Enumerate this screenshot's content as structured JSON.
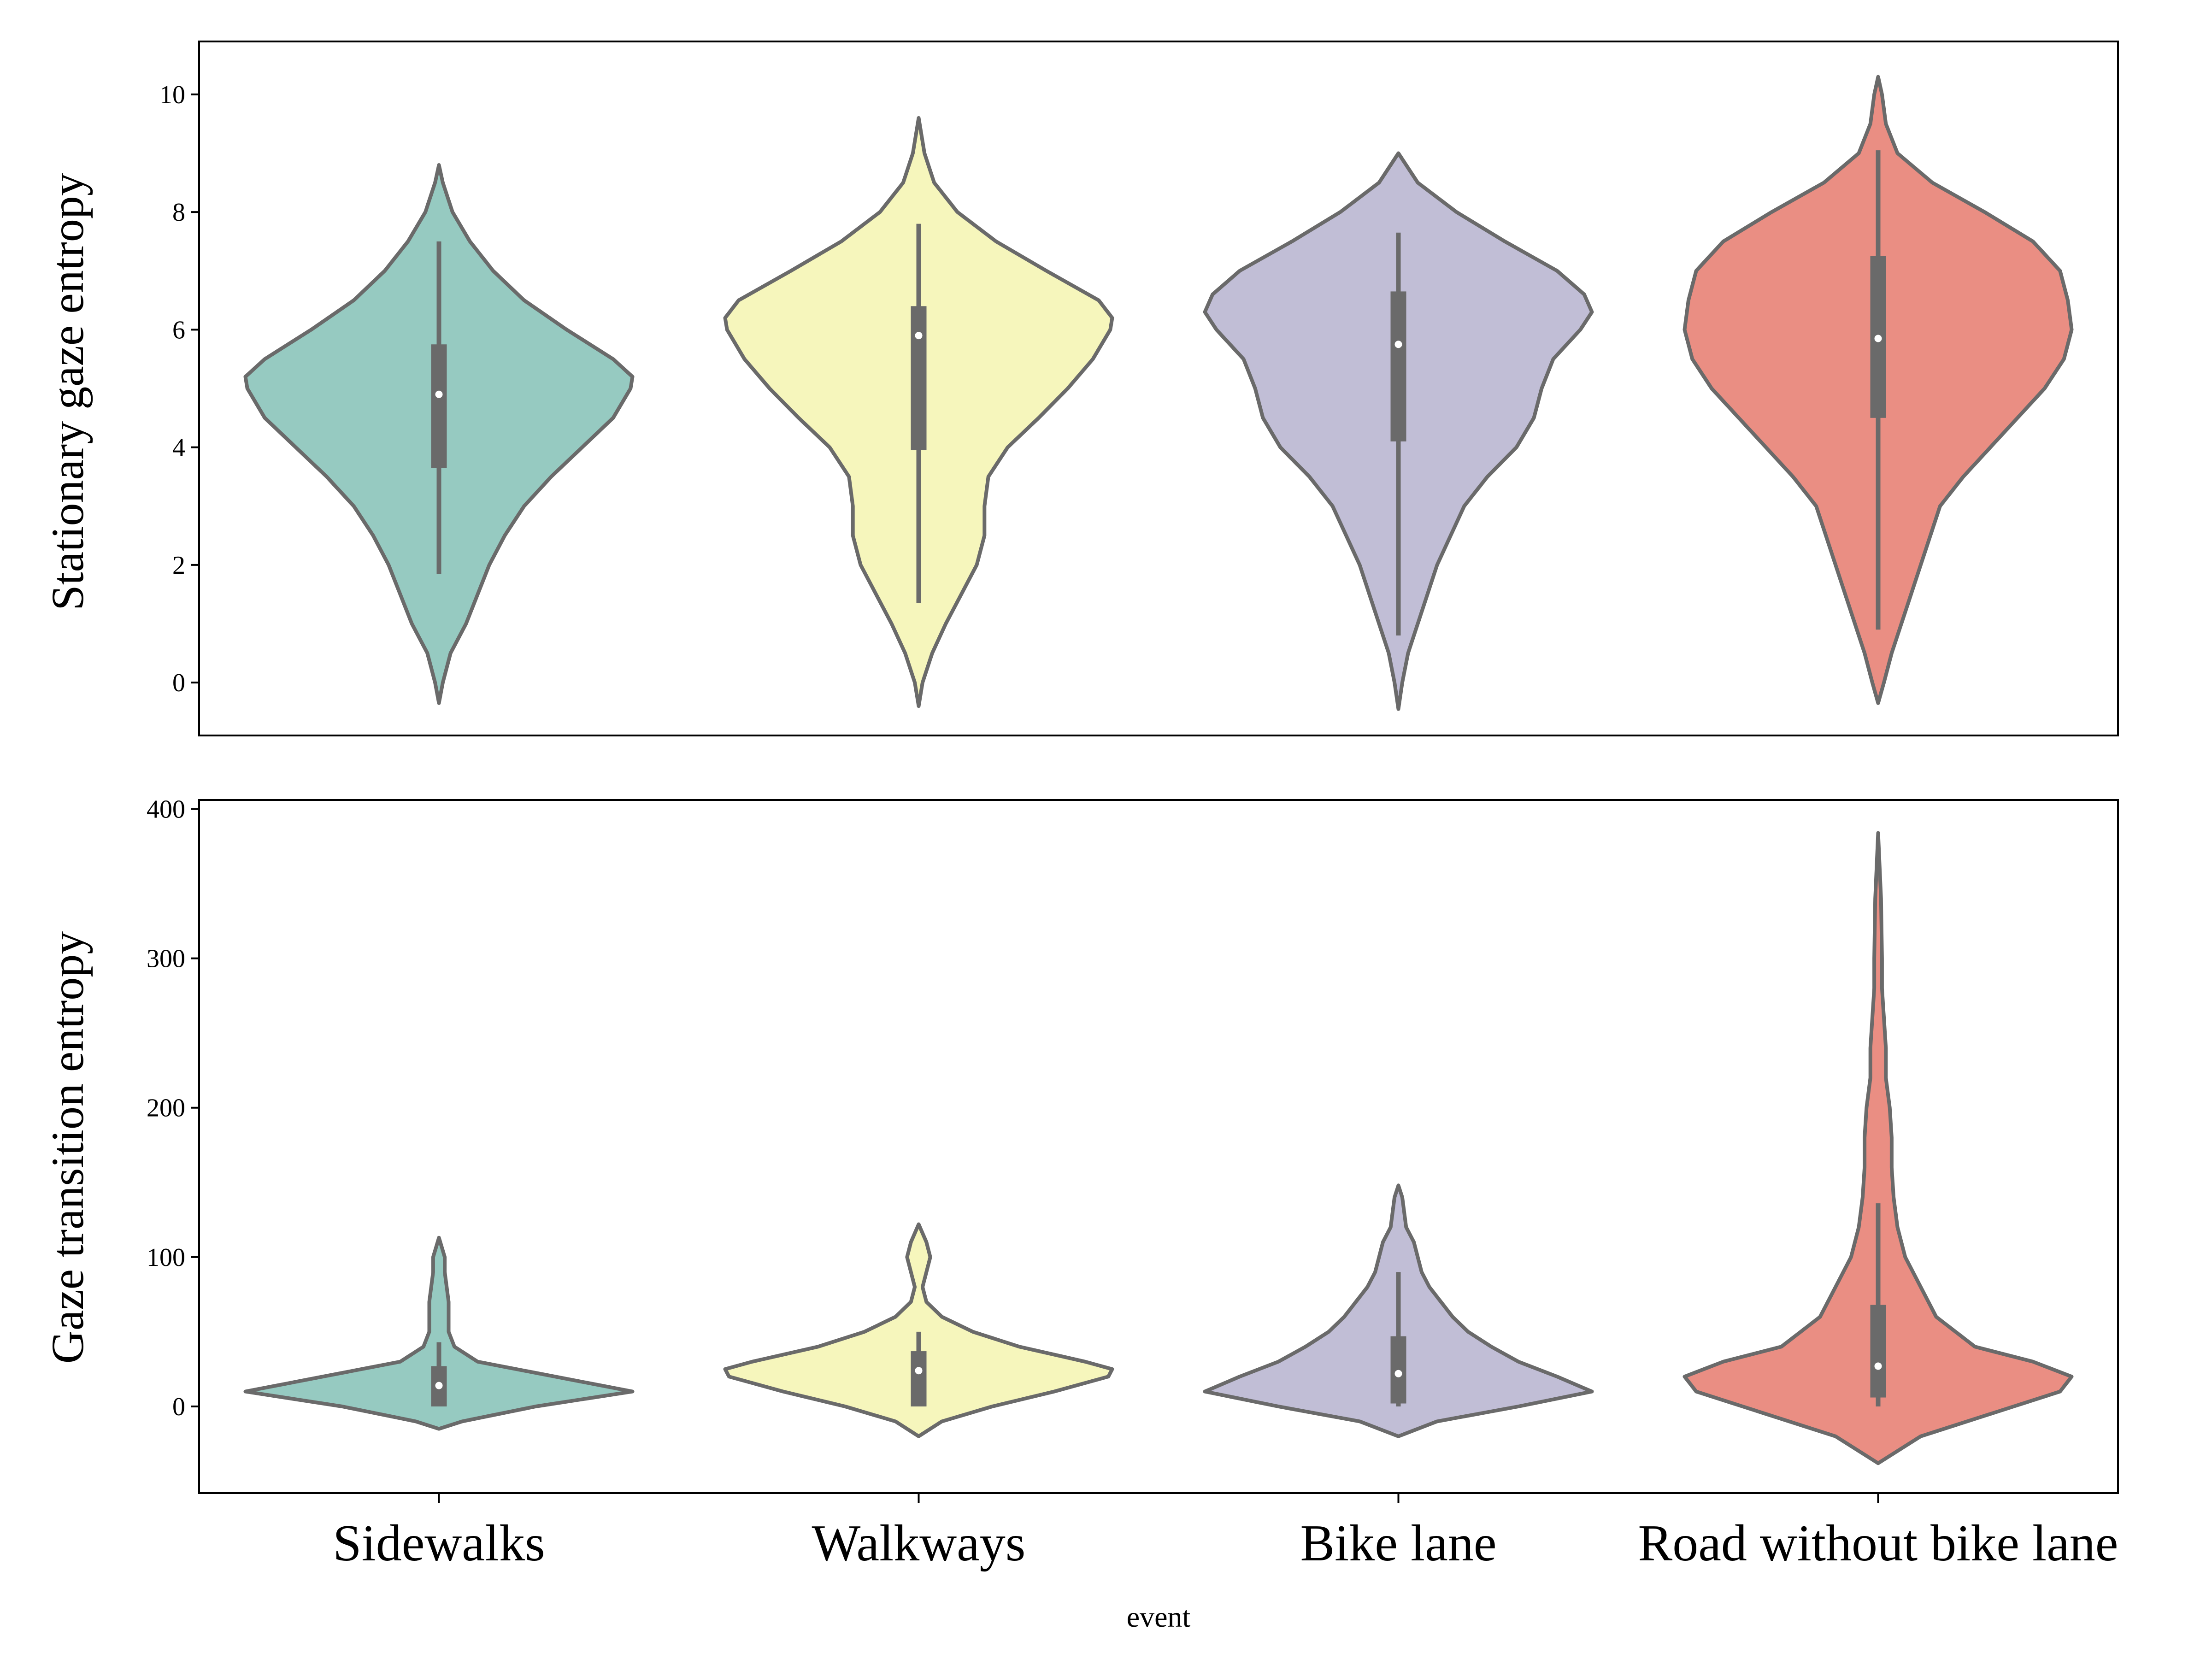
{
  "chart_data": [
    {
      "type": "violin",
      "ylabel": "Stationary gaze entropy",
      "ylim": [
        -0.9,
        10.9
      ],
      "yticks": [
        0,
        2,
        4,
        6,
        8,
        10
      ],
      "grid": false,
      "categories": [
        "Sidewalks",
        "Walkways",
        "Bike lane",
        "Road without bike lane"
      ],
      "colors": [
        "#96cac1",
        "#f6f6bc",
        "#c1bed6",
        "#ea8e83"
      ],
      "violins": [
        {
          "category": "Sidewalks",
          "median": 4.9,
          "q1": 3.65,
          "q3": 5.75,
          "whisker_low": 1.85,
          "whisker_high": 7.5,
          "profile": [
            [
              -0.35,
              0
            ],
            [
              0,
              0.02
            ],
            [
              0.5,
              0.06
            ],
            [
              1,
              0.14
            ],
            [
              1.5,
              0.2
            ],
            [
              2,
              0.26
            ],
            [
              2.5,
              0.34
            ],
            [
              3,
              0.44
            ],
            [
              3.5,
              0.58
            ],
            [
              4,
              0.74
            ],
            [
              4.5,
              0.9
            ],
            [
              5,
              0.99
            ],
            [
              5.2,
              1
            ],
            [
              5.5,
              0.9
            ],
            [
              6,
              0.66
            ],
            [
              6.5,
              0.44
            ],
            [
              7,
              0.28
            ],
            [
              7.5,
              0.16
            ],
            [
              8,
              0.07
            ],
            [
              8.5,
              0.02
            ],
            [
              8.8,
              0
            ]
          ]
        },
        {
          "category": "Walkways",
          "median": 5.9,
          "q1": 3.95,
          "q3": 6.4,
          "whisker_low": 1.35,
          "whisker_high": 7.8,
          "profile": [
            [
              -0.4,
              0
            ],
            [
              0,
              0.02
            ],
            [
              0.5,
              0.07
            ],
            [
              1,
              0.14
            ],
            [
              1.5,
              0.22
            ],
            [
              2,
              0.3
            ],
            [
              2.5,
              0.34
            ],
            [
              3,
              0.34
            ],
            [
              3.5,
              0.36
            ],
            [
              4,
              0.46
            ],
            [
              4.5,
              0.62
            ],
            [
              5,
              0.77
            ],
            [
              5.5,
              0.9
            ],
            [
              6,
              0.99
            ],
            [
              6.2,
              1
            ],
            [
              6.5,
              0.93
            ],
            [
              7,
              0.66
            ],
            [
              7.5,
              0.4
            ],
            [
              8,
              0.2
            ],
            [
              8.5,
              0.08
            ],
            [
              9,
              0.03
            ],
            [
              9.6,
              0
            ]
          ]
        },
        {
          "category": "Bike lane",
          "median": 5.75,
          "q1": 4.1,
          "q3": 6.65,
          "whisker_low": 0.8,
          "whisker_high": 7.65,
          "profile": [
            [
              -0.45,
              0
            ],
            [
              0,
              0.02
            ],
            [
              0.5,
              0.05
            ],
            [
              1,
              0.1
            ],
            [
              1.5,
              0.15
            ],
            [
              2,
              0.2
            ],
            [
              2.5,
              0.27
            ],
            [
              3,
              0.34
            ],
            [
              3.5,
              0.46
            ],
            [
              4,
              0.61
            ],
            [
              4.5,
              0.7
            ],
            [
              5,
              0.74
            ],
            [
              5.5,
              0.8
            ],
            [
              6,
              0.94
            ],
            [
              6.3,
              1
            ],
            [
              6.6,
              0.96
            ],
            [
              7,
              0.82
            ],
            [
              7.5,
              0.55
            ],
            [
              8,
              0.3
            ],
            [
              8.5,
              0.1
            ],
            [
              9,
              0
            ]
          ]
        },
        {
          "category": "Road without bike lane",
          "median": 5.85,
          "q1": 4.5,
          "q3": 7.25,
          "whisker_low": 0.9,
          "whisker_high": 9.05,
          "profile": [
            [
              -0.35,
              0
            ],
            [
              0,
              0.03
            ],
            [
              0.5,
              0.07
            ],
            [
              1,
              0.12
            ],
            [
              1.5,
              0.17
            ],
            [
              2,
              0.22
            ],
            [
              2.5,
              0.27
            ],
            [
              3,
              0.32
            ],
            [
              3.5,
              0.44
            ],
            [
              4,
              0.58
            ],
            [
              4.5,
              0.72
            ],
            [
              5,
              0.86
            ],
            [
              5.5,
              0.96
            ],
            [
              6,
              1
            ],
            [
              6.5,
              0.98
            ],
            [
              7,
              0.94
            ],
            [
              7.5,
              0.8
            ],
            [
              8,
              0.55
            ],
            [
              8.5,
              0.28
            ],
            [
              9,
              0.1
            ],
            [
              9.5,
              0.04
            ],
            [
              10,
              0.02
            ],
            [
              10.3,
              0
            ]
          ]
        }
      ]
    },
    {
      "type": "violin",
      "ylabel": "Gaze transition entropy",
      "xlabel": "event",
      "ylim": [
        -58,
        406
      ],
      "yticks": [
        0,
        100,
        200,
        300,
        400
      ],
      "grid": false,
      "categories": [
        "Sidewalks",
        "Walkways",
        "Bike lane",
        "Road without bike lane"
      ],
      "colors": [
        "#96cac1",
        "#f6f6bc",
        "#c1bed6",
        "#ea8e83"
      ],
      "violins": [
        {
          "category": "Sidewalks",
          "median": 14,
          "q1": 0,
          "q3": 27,
          "whisker_low": 0,
          "whisker_high": 43,
          "profile": [
            [
              -15,
              0
            ],
            [
              -10,
              0.12
            ],
            [
              0,
              0.5
            ],
            [
              10,
              1
            ],
            [
              20,
              0.6
            ],
            [
              30,
              0.2
            ],
            [
              40,
              0.08
            ],
            [
              50,
              0.05
            ],
            [
              60,
              0.05
            ],
            [
              70,
              0.05
            ],
            [
              80,
              0.04
            ],
            [
              90,
              0.03
            ],
            [
              100,
              0.03
            ],
            [
              113,
              0
            ]
          ]
        },
        {
          "category": "Walkways",
          "median": 24,
          "q1": 0,
          "q3": 37,
          "whisker_low": 0,
          "whisker_high": 50,
          "profile": [
            [
              -20,
              0
            ],
            [
              -10,
              0.12
            ],
            [
              0,
              0.38
            ],
            [
              10,
              0.7
            ],
            [
              20,
              0.98
            ],
            [
              25,
              1
            ],
            [
              30,
              0.86
            ],
            [
              40,
              0.52
            ],
            [
              50,
              0.28
            ],
            [
              60,
              0.12
            ],
            [
              70,
              0.04
            ],
            [
              80,
              0.02
            ],
            [
              90,
              0.04
            ],
            [
              100,
              0.06
            ],
            [
              110,
              0.04
            ],
            [
              122,
              0
            ]
          ]
        },
        {
          "category": "Bike lane",
          "median": 22,
          "q1": 2,
          "q3": 47,
          "whisker_low": 0,
          "whisker_high": 90,
          "profile": [
            [
              -20,
              0
            ],
            [
              -10,
              0.2
            ],
            [
              0,
              0.62
            ],
            [
              10,
              1
            ],
            [
              20,
              0.82
            ],
            [
              30,
              0.62
            ],
            [
              40,
              0.48
            ],
            [
              50,
              0.36
            ],
            [
              60,
              0.28
            ],
            [
              70,
              0.22
            ],
            [
              80,
              0.16
            ],
            [
              90,
              0.12
            ],
            [
              100,
              0.1
            ],
            [
              110,
              0.08
            ],
            [
              120,
              0.04
            ],
            [
              130,
              0.03
            ],
            [
              140,
              0.02
            ],
            [
              148,
              0
            ]
          ]
        },
        {
          "category": "Road without bike lane",
          "median": 27,
          "q1": 6,
          "q3": 68,
          "whisker_low": 0,
          "whisker_high": 136,
          "profile": [
            [
              -38,
              0
            ],
            [
              -20,
              0.22
            ],
            [
              0,
              0.7
            ],
            [
              10,
              0.94
            ],
            [
              20,
              1
            ],
            [
              30,
              0.8
            ],
            [
              40,
              0.5
            ],
            [
              60,
              0.3
            ],
            [
              80,
              0.22
            ],
            [
              100,
              0.14
            ],
            [
              120,
              0.1
            ],
            [
              140,
              0.08
            ],
            [
              160,
              0.07
            ],
            [
              180,
              0.07
            ],
            [
              200,
              0.06
            ],
            [
              220,
              0.04
            ],
            [
              240,
              0.04
            ],
            [
              260,
              0.03
            ],
            [
              280,
              0.02
            ],
            [
              300,
              0.02
            ],
            [
              340,
              0.015
            ],
            [
              384,
              0
            ]
          ]
        }
      ]
    }
  ]
}
